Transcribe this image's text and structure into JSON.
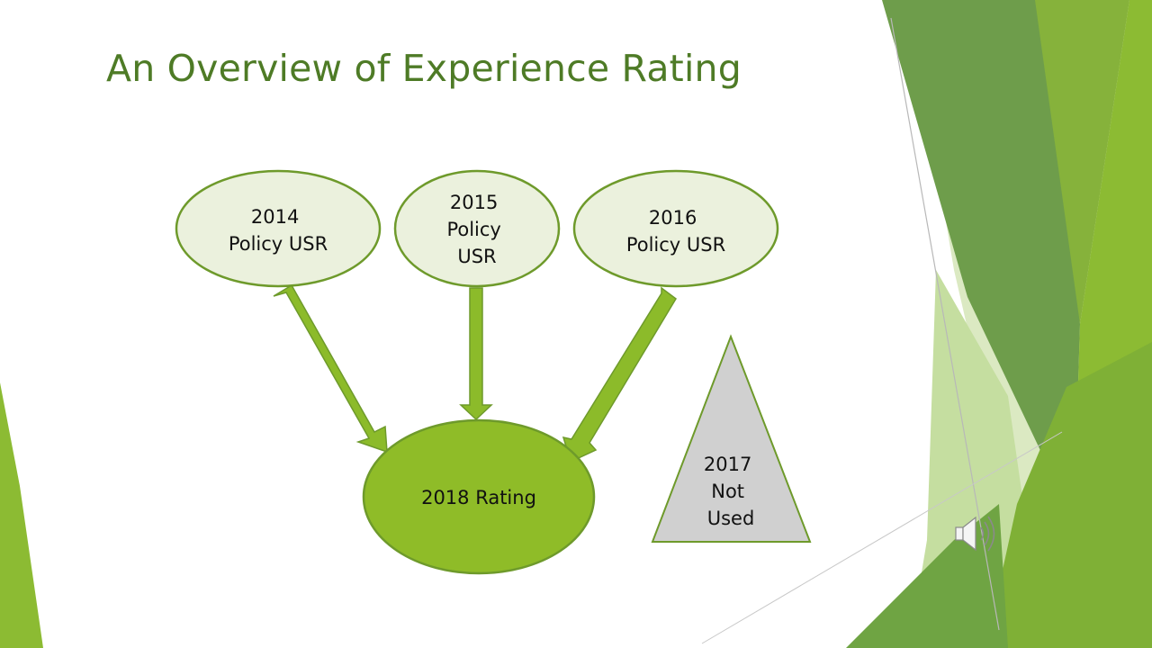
{
  "slide": {
    "title": "An Overview of Experience Rating"
  },
  "diagram": {
    "policy_nodes": [
      {
        "lines": [
          "2014",
          "Policy USR"
        ]
      },
      {
        "lines": [
          "2015",
          "Policy",
          "USR"
        ]
      },
      {
        "lines": [
          "2016",
          "Policy USR"
        ]
      }
    ],
    "rating_node": {
      "label": "2018 Rating"
    },
    "excluded_node": {
      "lines": [
        "2017",
        "Not",
        "Used"
      ]
    }
  },
  "media": {
    "audio_icon": "speaker-icon"
  },
  "colors": {
    "title": "#4e7b26",
    "node_fill": "#ebf1dd",
    "node_stroke": "#6e9a2b",
    "arrow_fill": "#8cbb2a",
    "rating_fill": "#8fbc28",
    "excluded_fill": "#d0d0d0",
    "deco_dark": "#6e9d4b",
    "deco_mid": "#8cbb33",
    "deco_light": "#c5dea0"
  }
}
